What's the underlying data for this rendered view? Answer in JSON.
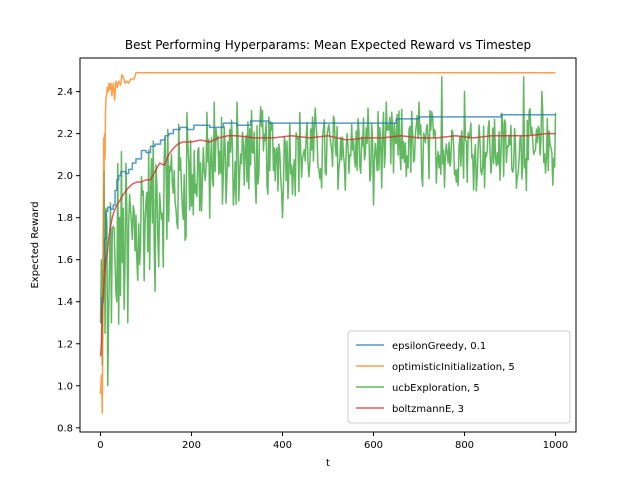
{
  "chart_data": {
    "type": "line",
    "title": "Best Performing Hyperparams: Mean Expected Reward vs Timestep",
    "xlabel": "t",
    "ylabel": "Expected Reward",
    "xlim": [
      -45,
      1045
    ],
    "ylim": [
      0.78,
      2.56
    ],
    "xticks": [
      0,
      200,
      400,
      600,
      800,
      1000
    ],
    "yticks": [
      0.8,
      1.0,
      1.2,
      1.4,
      1.6,
      1.8,
      2.0,
      2.2,
      2.4
    ],
    "grid": false,
    "legend_position": "lower-right",
    "series": [
      {
        "name": "epsilonGreedy, 0.1",
        "color": "#1f77b4",
        "style": "step",
        "points": [
          [
            0,
            1.3
          ],
          [
            3,
            1.42
          ],
          [
            6,
            1.55
          ],
          [
            9,
            1.7
          ],
          [
            12,
            1.83
          ],
          [
            16,
            1.85
          ],
          [
            22,
            1.84
          ],
          [
            28,
            1.86
          ],
          [
            32,
            1.93
          ],
          [
            36,
            1.98
          ],
          [
            40,
            2.0
          ],
          [
            45,
            2.02
          ],
          [
            55,
            2.01
          ],
          [
            62,
            2.03
          ],
          [
            70,
            2.06
          ],
          [
            78,
            2.08
          ],
          [
            90,
            2.12
          ],
          [
            100,
            2.11
          ],
          [
            110,
            2.14
          ],
          [
            120,
            2.15
          ],
          [
            132,
            2.17
          ],
          [
            142,
            2.19
          ],
          [
            150,
            2.2
          ],
          [
            160,
            2.22
          ],
          [
            175,
            2.23
          ],
          [
            190,
            2.22
          ],
          [
            205,
            2.24
          ],
          [
            240,
            2.23
          ],
          [
            270,
            2.25
          ],
          [
            300,
            2.24
          ],
          [
            330,
            2.26
          ],
          [
            370,
            2.25
          ],
          [
            440,
            2.25
          ],
          [
            560,
            2.25
          ],
          [
            645,
            2.25
          ],
          [
            650,
            2.27
          ],
          [
            700,
            2.28
          ],
          [
            750,
            2.28
          ],
          [
            800,
            2.28
          ],
          [
            880,
            2.29
          ],
          [
            950,
            2.29
          ],
          [
            1000,
            2.29
          ]
        ]
      },
      {
        "name": "optimisticInitialization, 5",
        "color": "#ff7f0e",
        "style": "line",
        "points": [
          [
            0,
            0.96
          ],
          [
            2,
            1.05
          ],
          [
            4,
            0.87
          ],
          [
            6,
            1.6
          ],
          [
            7,
            2.18
          ],
          [
            8,
            2.01
          ],
          [
            9,
            2.2
          ],
          [
            10,
            2.08
          ],
          [
            11,
            2.3
          ],
          [
            12,
            2.36
          ],
          [
            13,
            2.38
          ],
          [
            15,
            2.42
          ],
          [
            17,
            2.4
          ],
          [
            19,
            2.44
          ],
          [
            21,
            2.41
          ],
          [
            23,
            2.44
          ],
          [
            25,
            2.38
          ],
          [
            28,
            2.44
          ],
          [
            31,
            2.36
          ],
          [
            34,
            2.45
          ],
          [
            37,
            2.42
          ],
          [
            40,
            2.45
          ],
          [
            44,
            2.43
          ],
          [
            47,
            2.48
          ],
          [
            50,
            2.47
          ],
          [
            54,
            2.44
          ],
          [
            58,
            2.45
          ],
          [
            62,
            2.44
          ],
          [
            66,
            2.46
          ],
          [
            70,
            2.46
          ],
          [
            74,
            2.46
          ],
          [
            78,
            2.49
          ],
          [
            300,
            2.49
          ],
          [
            600,
            2.49
          ],
          [
            1000,
            2.49
          ]
        ]
      },
      {
        "name": "ucbExploration, 5",
        "color": "#2ca02c",
        "style": "noisy",
        "anchors": [
          [
            0,
            1.5
          ],
          [
            20,
            1.55
          ],
          [
            50,
            1.68
          ],
          [
            100,
            1.82
          ],
          [
            150,
            1.92
          ],
          [
            200,
            1.99
          ],
          [
            250,
            2.04
          ],
          [
            300,
            2.08
          ],
          [
            350,
            2.1
          ],
          [
            400,
            2.11
          ],
          [
            500,
            2.12
          ],
          [
            600,
            2.13
          ],
          [
            700,
            2.13
          ],
          [
            800,
            2.13
          ],
          [
            900,
            2.13
          ],
          [
            1000,
            2.12
          ]
        ],
        "amplitude_anchors": [
          [
            0,
            0.55
          ],
          [
            50,
            0.4
          ],
          [
            100,
            0.33
          ],
          [
            200,
            0.25
          ],
          [
            400,
            0.18
          ],
          [
            600,
            0.17
          ],
          [
            1000,
            0.15
          ]
        ],
        "points": [
          [
            0,
            1.3
          ],
          [
            4,
            1.1
          ],
          [
            6,
            1.7
          ],
          [
            8,
            2.02
          ],
          [
            10,
            1.25
          ],
          [
            13,
            1.55
          ],
          [
            16,
            1.0
          ],
          [
            20,
            1.6
          ],
          [
            24,
            1.3
          ],
          [
            30,
            1.75
          ],
          [
            36,
            1.4
          ],
          [
            60,
            1.3
          ],
          [
            120,
            1.45
          ],
          [
            148,
            2.22
          ],
          [
            190,
            2.3
          ],
          [
            250,
            2.35
          ],
          [
            300,
            2.35
          ],
          [
            345,
            2.4
          ],
          [
            400,
            1.8
          ],
          [
            445,
            2.45
          ],
          [
            515,
            2.35
          ],
          [
            600,
            1.86
          ],
          [
            645,
            1.9
          ],
          [
            700,
            2.35
          ],
          [
            750,
            2.47
          ],
          [
            800,
            2.4
          ],
          [
            930,
            2.47
          ],
          [
            970,
            2.4
          ],
          [
            995,
            1.85
          ],
          [
            1000,
            2.3
          ]
        ]
      },
      {
        "name": "boltzmannE, 3",
        "color": "#d62728",
        "style": "smooth",
        "points": [
          [
            0,
            1.14
          ],
          [
            2,
            1.2
          ],
          [
            4,
            1.38
          ],
          [
            6,
            1.4
          ],
          [
            8,
            1.5
          ],
          [
            10,
            1.56
          ],
          [
            12,
            1.6
          ],
          [
            15,
            1.63
          ],
          [
            18,
            1.7
          ],
          [
            22,
            1.76
          ],
          [
            26,
            1.8
          ],
          [
            30,
            1.83
          ],
          [
            36,
            1.86
          ],
          [
            42,
            1.88
          ],
          [
            50,
            1.91
          ],
          [
            60,
            1.94
          ],
          [
            70,
            1.96
          ],
          [
            80,
            1.97
          ],
          [
            90,
            1.97
          ],
          [
            100,
            1.98
          ],
          [
            110,
            1.98
          ],
          [
            120,
            2.02
          ],
          [
            130,
            2.06
          ],
          [
            140,
            2.05
          ],
          [
            150,
            2.1
          ],
          [
            160,
            2.13
          ],
          [
            170,
            2.15
          ],
          [
            180,
            2.16
          ],
          [
            200,
            2.16
          ],
          [
            220,
            2.17
          ],
          [
            240,
            2.16
          ],
          [
            260,
            2.18
          ],
          [
            280,
            2.19
          ],
          [
            300,
            2.19
          ],
          [
            340,
            2.18
          ],
          [
            380,
            2.18
          ],
          [
            420,
            2.19
          ],
          [
            460,
            2.18
          ],
          [
            500,
            2.19
          ],
          [
            540,
            2.17
          ],
          [
            580,
            2.18
          ],
          [
            620,
            2.18
          ],
          [
            660,
            2.19
          ],
          [
            700,
            2.18
          ],
          [
            740,
            2.18
          ],
          [
            780,
            2.19
          ],
          [
            820,
            2.18
          ],
          [
            860,
            2.19
          ],
          [
            900,
            2.19
          ],
          [
            940,
            2.19
          ],
          [
            980,
            2.2
          ],
          [
            1000,
            2.2
          ]
        ]
      }
    ]
  }
}
